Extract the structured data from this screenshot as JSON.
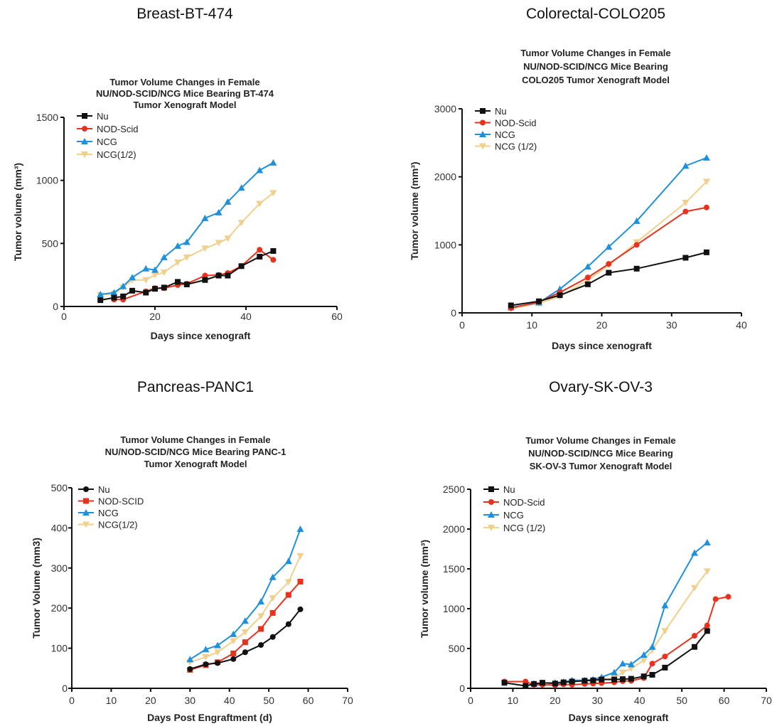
{
  "chart_data": [
    {
      "type": "line",
      "panel_title": "Breast-BT-474",
      "title": [
        "Tumor Volume  Changes in Female",
        "NU/NOD-SCID/NCG Mice Bearing BT-474",
        "Tumor Xenograft Model"
      ],
      "xlabel": "Days since xenograft",
      "ylabel": "Tumor volume (mm³)",
      "xlim": [
        0,
        60
      ],
      "ylim": [
        0,
        1500
      ],
      "xticks": [
        "0",
        "20",
        "40",
        "60"
      ],
      "yticks": [
        "0",
        "500",
        "1000",
        "1500"
      ],
      "legend": "top-left",
      "series": [
        {
          "name": "Nu",
          "color": "#111111",
          "marker": "square",
          "x": [
            8,
            11,
            13,
            15,
            18,
            20,
            22,
            25,
            27,
            31,
            34,
            36,
            39,
            43,
            46
          ],
          "y": [
            50,
            70,
            80,
            125,
            110,
            140,
            150,
            195,
            175,
            210,
            245,
            245,
            320,
            395,
            440
          ]
        },
        {
          "name": "NOD-Scid",
          "color": "#e8321e",
          "marker": "circle",
          "x": [
            11,
            13,
            18,
            20,
            22,
            25,
            27,
            31,
            34,
            36,
            39,
            43,
            46
          ],
          "y": [
            55,
            55,
            120,
            145,
            145,
            170,
            180,
            245,
            250,
            265,
            320,
            450,
            370
          ]
        },
        {
          "name": "NCG",
          "color": "#1e90dc",
          "marker": "triangle",
          "x": [
            8,
            11,
            13,
            15,
            18,
            20,
            22,
            25,
            27,
            31,
            34,
            36,
            39,
            43,
            46
          ],
          "y": [
            95,
            110,
            160,
            230,
            300,
            290,
            390,
            480,
            510,
            700,
            745,
            830,
            940,
            1080,
            1140
          ]
        },
        {
          "name": "NCG(1/2)",
          "color": "#f0d08c",
          "marker": "triangle-down",
          "x": [
            8,
            11,
            13,
            15,
            18,
            20,
            22,
            25,
            27,
            31,
            34,
            36,
            39,
            43,
            46
          ],
          "y": [
            90,
            100,
            150,
            210,
            210,
            250,
            270,
            350,
            390,
            460,
            505,
            540,
            665,
            815,
            900
          ]
        }
      ]
    },
    {
      "type": "line",
      "panel_title": "Colorectal-COLO205",
      "title": [
        "Tumor Volume  Changes in Female",
        "NU/NOD-SCID/NCG Mice Bearing",
        "COLO205 Tumor Xenograft Model"
      ],
      "xlabel": "Days since xenograft",
      "ylabel": "Tumor volume (mm³)",
      "xlim": [
        0,
        40
      ],
      "ylim": [
        0,
        3000
      ],
      "xticks": [
        "0",
        "10",
        "20",
        "30",
        "40"
      ],
      "yticks": [
        "0",
        "1000",
        "2000",
        "3000"
      ],
      "legend": "top-left",
      "series": [
        {
          "name": "Nu",
          "color": "#111111",
          "marker": "square",
          "x": [
            7,
            11,
            14,
            18,
            21,
            25,
            32,
            35
          ],
          "y": [
            110,
            170,
            260,
            420,
            590,
            650,
            810,
            890
          ]
        },
        {
          "name": "NOD-Scid",
          "color": "#e8321e",
          "marker": "circle",
          "x": [
            7,
            11,
            14,
            18,
            21,
            25,
            32,
            35
          ],
          "y": [
            70,
            160,
            300,
            520,
            720,
            1000,
            1490,
            1550
          ]
        },
        {
          "name": "NCG",
          "color": "#1e90dc",
          "marker": "triangle",
          "x": [
            7,
            11,
            14,
            18,
            21,
            25,
            32,
            35
          ],
          "y": [
            80,
            150,
            350,
            680,
            970,
            1350,
            2160,
            2280
          ]
        },
        {
          "name": "NCG (1/2)",
          "color": "#f0d08c",
          "marker": "triangle-down",
          "x": [
            7,
            11,
            14,
            18,
            21,
            25,
            32,
            35
          ],
          "y": [
            60,
            140,
            240,
            480,
            700,
            1040,
            1620,
            1930
          ]
        }
      ]
    },
    {
      "type": "line",
      "panel_title": "Pancreas-PANC1",
      "title": [
        "Tumor Volume  Changes in Female",
        "NU/NOD-SCID/NCG Mice Bearing PANC-1",
        "Tumor Xenograft Model"
      ],
      "xlabel": "Days Post Engraftment (d)",
      "ylabel": "Tumor Volume (mm3)",
      "xlim": [
        0,
        70
      ],
      "ylim": [
        0,
        500
      ],
      "xticks": [
        "0",
        "10",
        "20",
        "30",
        "40",
        "50",
        "60",
        "70"
      ],
      "yticks": [
        "0",
        "100",
        "200",
        "300",
        "400",
        "500"
      ],
      "legend": "top-left",
      "series": [
        {
          "name": "Nu",
          "color": "#111111",
          "marker": "circle",
          "x": [
            30,
            34,
            37,
            41,
            44,
            48,
            51,
            55,
            58
          ],
          "y": [
            48,
            60,
            63,
            73,
            90,
            108,
            128,
            160,
            197
          ]
        },
        {
          "name": "NOD-SCID",
          "color": "#e8321e",
          "marker": "square",
          "x": [
            30,
            34,
            37,
            41,
            44,
            48,
            51,
            55,
            58
          ],
          "y": [
            46,
            58,
            65,
            87,
            115,
            148,
            188,
            233,
            266
          ]
        },
        {
          "name": "NCG",
          "color": "#1e90dc",
          "marker": "triangle",
          "x": [
            30,
            34,
            37,
            41,
            44,
            48,
            51,
            55,
            58
          ],
          "y": [
            72,
            97,
            107,
            135,
            168,
            216,
            277,
            317,
            397
          ]
        },
        {
          "name": "NCG(1/2)",
          "color": "#f0d08c",
          "marker": "triangle-down",
          "x": [
            30,
            34,
            37,
            41,
            44,
            48,
            51,
            55,
            58
          ],
          "y": [
            65,
            78,
            90,
            118,
            140,
            180,
            225,
            265,
            330
          ]
        }
      ]
    },
    {
      "type": "line",
      "panel_title": "Ovary-SK-OV-3",
      "title": [
        "Tumor Volume  Changes in Female",
        "NU/NOD-SCID/NCG Mice Bearing",
        "SK-OV-3 Tumor Xenograft Model"
      ],
      "xlabel": "Days since xenograft",
      "ylabel": "Tumor volume (mm³)",
      "xlim": [
        0,
        70
      ],
      "ylim": [
        0,
        2500
      ],
      "xticks": [
        "0",
        "10",
        "20",
        "30",
        "40",
        "50",
        "60",
        "70"
      ],
      "yticks": [
        "0",
        "500",
        "1000",
        "1500",
        "2000",
        "2500"
      ],
      "legend": "top-left",
      "series": [
        {
          "name": "Nu",
          "color": "#111111",
          "marker": "square",
          "x": [
            8,
            13,
            15,
            17,
            20,
            22,
            24,
            27,
            29,
            31,
            34,
            36,
            38,
            41,
            43,
            46,
            53,
            56
          ],
          "y": [
            70,
            30,
            55,
            70,
            60,
            75,
            85,
            95,
            100,
            110,
            110,
            115,
            120,
            150,
            170,
            260,
            520,
            720
          ]
        },
        {
          "name": "NOD-Scid",
          "color": "#e8321e",
          "marker": "circle",
          "x": [
            8,
            13,
            15,
            17,
            20,
            22,
            24,
            27,
            29,
            31,
            34,
            36,
            38,
            41,
            43,
            46,
            53,
            56,
            58,
            61
          ],
          "y": [
            85,
            85,
            45,
            45,
            40,
            50,
            45,
            55,
            60,
            65,
            75,
            90,
            95,
            130,
            310,
            400,
            660,
            790,
            1120,
            1150
          ]
        },
        {
          "name": "NCG",
          "color": "#1e90dc",
          "marker": "triangle",
          "x": [
            15,
            17,
            20,
            22,
            24,
            27,
            29,
            31,
            34,
            36,
            38,
            41,
            43,
            46,
            53,
            56
          ],
          "y": [
            60,
            65,
            70,
            80,
            100,
            100,
            110,
            140,
            200,
            310,
            300,
            420,
            520,
            1040,
            1700,
            1830
          ]
        },
        {
          "name": "NCG (1/2)",
          "color": "#f0d08c",
          "marker": "triangle-down",
          "x": [
            31,
            34,
            36,
            38,
            41,
            43,
            46,
            53,
            56
          ],
          "y": [
            110,
            130,
            200,
            250,
            350,
            480,
            720,
            1260,
            1470
          ]
        }
      ]
    }
  ]
}
